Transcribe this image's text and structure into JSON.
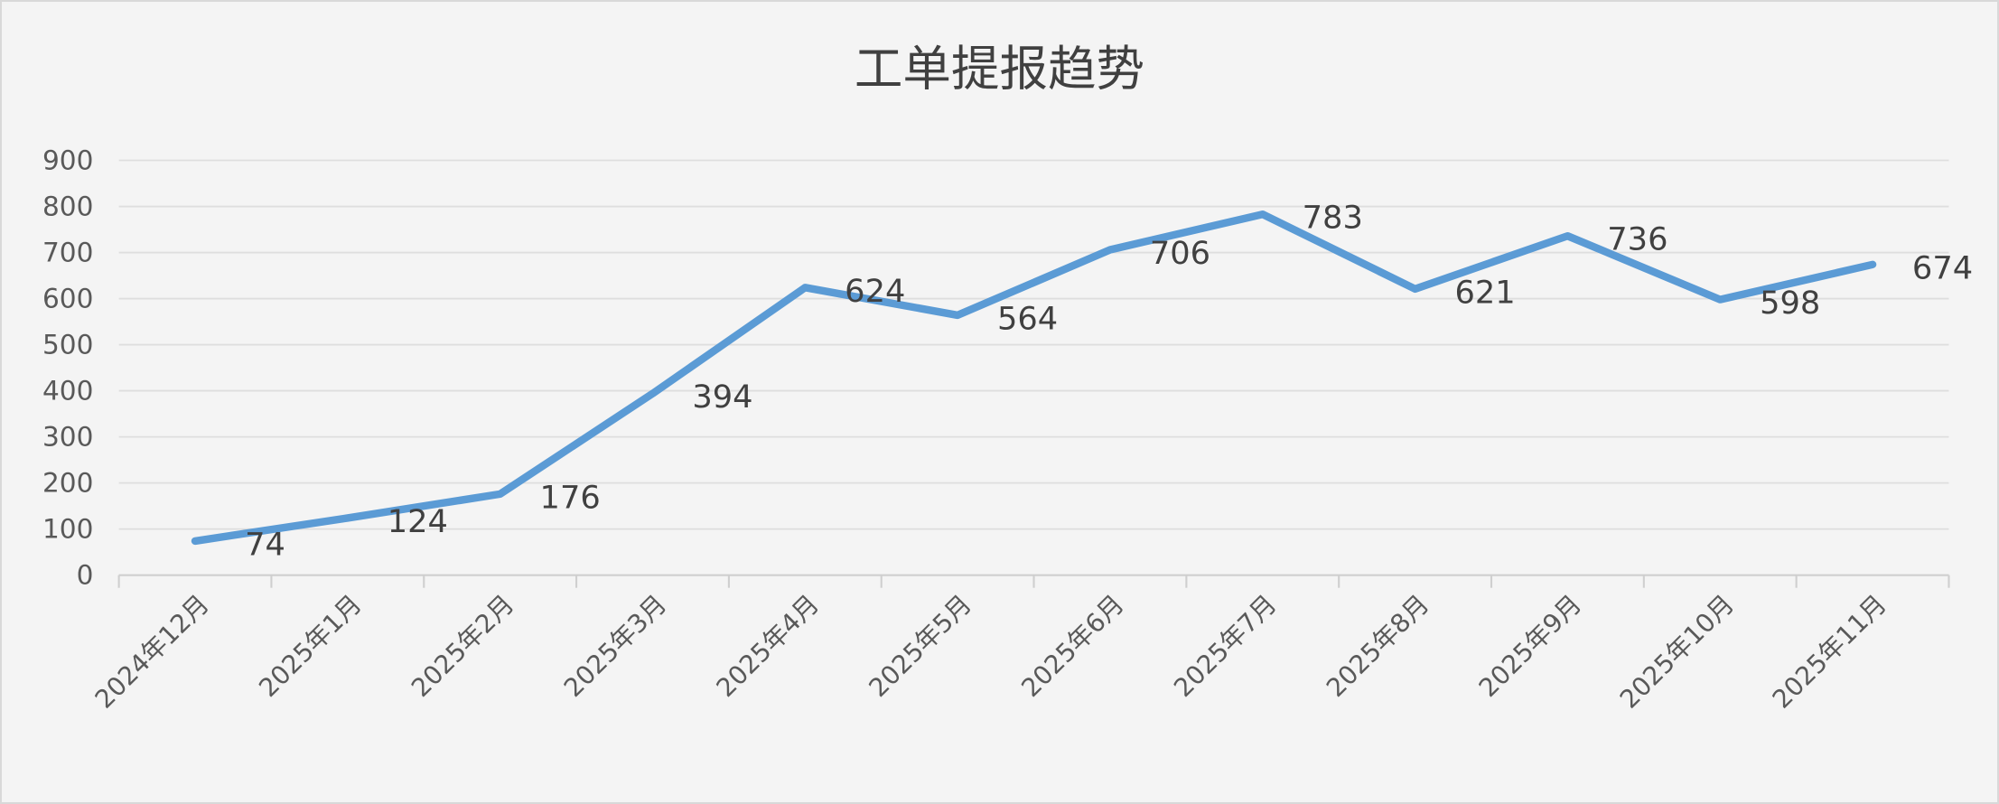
{
  "chart_data": {
    "type": "line",
    "title": "工单提报趋势",
    "categories": [
      "2024年12月",
      "2025年1月",
      "2025年2月",
      "2025年3月",
      "2025年4月",
      "2025年5月",
      "2025年6月",
      "2025年7月",
      "2025年8月",
      "2025年9月",
      "2025年10月",
      "2025年11月"
    ],
    "series": [
      {
        "values": [
          74,
          124,
          176,
          394,
          624,
          564,
          706,
          783,
          621,
          736,
          598,
          674
        ]
      }
    ],
    "yticks": [
      "0",
      "100",
      "200",
      "300",
      "400",
      "500",
      "600",
      "700",
      "800",
      "900"
    ],
    "ylim": [
      0,
      900
    ],
    "grid": true,
    "data_labels": true,
    "xlabel": "",
    "ylabel": "",
    "line_color": "#5b9bd5",
    "background": "#f4f4f4"
  }
}
